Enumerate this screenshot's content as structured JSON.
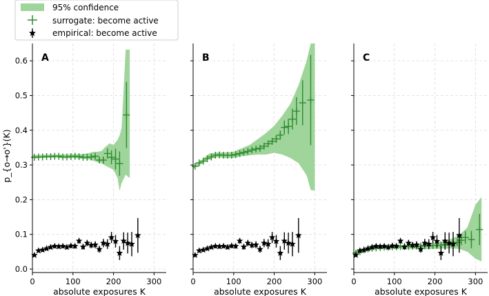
{
  "chart_data": {
    "type": "scatter",
    "shared_ylabel": "p_{o→o'}(K)",
    "shared_xlabel": "absolute exposures K",
    "ylim": [
      -0.01,
      0.65
    ],
    "yticks": [
      0.0,
      0.1,
      0.2,
      0.3,
      0.4,
      0.5,
      0.6
    ],
    "ytick_labels": [
      "0.0",
      "0.1",
      "0.2",
      "0.3",
      "0.4",
      "0.5",
      "0.6"
    ],
    "legend": {
      "placement": "top-left, above panels",
      "entries": [
        {
          "name": "95% confidence",
          "kind": "band",
          "color": "#9fd49a"
        },
        {
          "name": "surrogate: become active",
          "kind": "plus",
          "color": "#2e8b2e"
        },
        {
          "name": "empirical: become active",
          "kind": "star",
          "color": "#000000"
        }
      ]
    },
    "panels": [
      {
        "label": "A",
        "xlabel": "absolute exposures K",
        "xlim": [
          0,
          330
        ],
        "xticks": [
          0,
          100,
          200,
          300
        ],
        "xtick_labels": [
          "0",
          "100",
          "200",
          "300"
        ],
        "confidence_band": {
          "x": [
            0,
            20,
            40,
            60,
            80,
            100,
            120,
            140,
            150,
            160,
            170,
            180,
            190,
            200,
            210,
            215,
            220,
            230,
            240
          ],
          "lower": [
            0.319,
            0.32,
            0.321,
            0.321,
            0.319,
            0.32,
            0.318,
            0.316,
            0.312,
            0.308,
            0.305,
            0.298,
            0.292,
            0.286,
            0.262,
            0.225,
            0.248,
            0.272,
            0.262
          ],
          "upper": [
            0.328,
            0.329,
            0.33,
            0.33,
            0.33,
            0.331,
            0.331,
            0.334,
            0.338,
            0.338,
            0.34,
            0.352,
            0.362,
            0.358,
            0.372,
            0.385,
            0.405,
            0.632,
            0.632
          ]
        },
        "surrogate": {
          "x": [
            5,
            15,
            25,
            35,
            45,
            55,
            65,
            75,
            85,
            95,
            105,
            115,
            125,
            135,
            145,
            155,
            165,
            175,
            185,
            195,
            205,
            215,
            232
          ],
          "y": [
            0.322,
            0.323,
            0.323,
            0.324,
            0.324,
            0.325,
            0.325,
            0.323,
            0.323,
            0.324,
            0.325,
            0.324,
            0.322,
            0.322,
            0.323,
            0.325,
            0.314,
            0.314,
            0.333,
            0.322,
            0.317,
            0.304,
            0.444
          ],
          "err": [
            0.002,
            0.002,
            0.002,
            0.002,
            0.002,
            0.002,
            0.002,
            0.002,
            0.002,
            0.002,
            0.002,
            0.003,
            0.003,
            0.004,
            0.005,
            0.006,
            0.008,
            0.01,
            0.015,
            0.02,
            0.03,
            0.035,
            0.095
          ]
        },
        "empirical": {
          "x": [
            5,
            15,
            25,
            35,
            45,
            55,
            65,
            75,
            85,
            95,
            105,
            115,
            125,
            135,
            145,
            155,
            165,
            175,
            185,
            195,
            205,
            215,
            225,
            235,
            245,
            260
          ],
          "y": [
            0.04,
            0.053,
            0.055,
            0.059,
            0.063,
            0.066,
            0.065,
            0.066,
            0.063,
            0.067,
            0.066,
            0.081,
            0.064,
            0.075,
            0.069,
            0.07,
            0.057,
            0.075,
            0.072,
            0.091,
            0.08,
            0.046,
            0.081,
            0.075,
            0.072,
            0.097
          ],
          "err": [
            0.004,
            0.005,
            0.005,
            0.005,
            0.005,
            0.006,
            0.006,
            0.006,
            0.006,
            0.007,
            0.007,
            0.008,
            0.008,
            0.009,
            0.009,
            0.01,
            0.01,
            0.012,
            0.014,
            0.016,
            0.018,
            0.02,
            0.025,
            0.03,
            0.035,
            0.05
          ]
        }
      },
      {
        "label": "B",
        "xlabel": "absolute exposures K",
        "xlim": [
          0,
          330
        ],
        "xticks": [
          0,
          100,
          200,
          300
        ],
        "xtick_labels": [
          "0",
          "100",
          "200",
          "300"
        ],
        "confidence_band": {
          "x": [
            0,
            20,
            40,
            60,
            80,
            100,
            120,
            140,
            160,
            180,
            200,
            220,
            240,
            260,
            280,
            290,
            300
          ],
          "lower": [
            0.289,
            0.303,
            0.318,
            0.322,
            0.32,
            0.32,
            0.325,
            0.328,
            0.33,
            0.33,
            0.335,
            0.33,
            0.32,
            0.305,
            0.27,
            0.228,
            0.226
          ],
          "upper": [
            0.3,
            0.313,
            0.333,
            0.336,
            0.336,
            0.338,
            0.348,
            0.358,
            0.375,
            0.392,
            0.413,
            0.442,
            0.476,
            0.53,
            0.6,
            0.65,
            0.65
          ]
        },
        "surrogate": {
          "x": [
            5,
            15,
            25,
            35,
            45,
            55,
            65,
            75,
            85,
            95,
            105,
            115,
            125,
            135,
            145,
            155,
            165,
            175,
            185,
            195,
            205,
            215,
            225,
            235,
            245,
            255,
            270,
            290
          ],
          "y": [
            0.296,
            0.306,
            0.311,
            0.318,
            0.323,
            0.328,
            0.329,
            0.328,
            0.328,
            0.328,
            0.33,
            0.333,
            0.336,
            0.339,
            0.343,
            0.346,
            0.348,
            0.354,
            0.361,
            0.368,
            0.375,
            0.386,
            0.408,
            0.411,
            0.432,
            0.455,
            0.479,
            0.487
          ],
          "err": [
            0.003,
            0.003,
            0.003,
            0.003,
            0.003,
            0.003,
            0.003,
            0.003,
            0.003,
            0.003,
            0.003,
            0.004,
            0.004,
            0.005,
            0.005,
            0.006,
            0.006,
            0.007,
            0.008,
            0.009,
            0.011,
            0.013,
            0.02,
            0.022,
            0.03,
            0.04,
            0.065,
            0.13
          ]
        },
        "empirical": {
          "x": [
            5,
            15,
            25,
            35,
            45,
            55,
            65,
            75,
            85,
            95,
            105,
            115,
            125,
            135,
            145,
            155,
            165,
            175,
            185,
            195,
            205,
            215,
            225,
            235,
            245,
            260
          ],
          "y": [
            0.04,
            0.053,
            0.055,
            0.059,
            0.063,
            0.066,
            0.065,
            0.066,
            0.063,
            0.067,
            0.066,
            0.081,
            0.064,
            0.075,
            0.069,
            0.07,
            0.057,
            0.075,
            0.072,
            0.091,
            0.08,
            0.046,
            0.081,
            0.075,
            0.072,
            0.097
          ],
          "err": [
            0.004,
            0.005,
            0.005,
            0.005,
            0.005,
            0.006,
            0.006,
            0.006,
            0.006,
            0.007,
            0.007,
            0.008,
            0.008,
            0.009,
            0.009,
            0.01,
            0.01,
            0.012,
            0.014,
            0.016,
            0.018,
            0.02,
            0.025,
            0.03,
            0.035,
            0.05
          ]
        }
      },
      {
        "label": "C",
        "xlabel": "absolute exposures K",
        "xlim": [
          0,
          330
        ],
        "xticks": [
          0,
          100,
          200,
          300
        ],
        "xtick_labels": [
          "0",
          "100",
          "200",
          "300"
        ],
        "confidence_band": {
          "x": [
            0,
            20,
            40,
            60,
            80,
            100,
            120,
            140,
            160,
            180,
            200,
            220,
            240,
            260,
            280,
            300,
            315
          ],
          "lower": [
            0.038,
            0.048,
            0.053,
            0.057,
            0.058,
            0.059,
            0.059,
            0.058,
            0.058,
            0.057,
            0.058,
            0.059,
            0.059,
            0.058,
            0.05,
            0.03,
            0.022
          ],
          "upper": [
            0.05,
            0.058,
            0.062,
            0.066,
            0.067,
            0.068,
            0.069,
            0.07,
            0.071,
            0.073,
            0.076,
            0.08,
            0.087,
            0.098,
            0.12,
            0.185,
            0.208
          ]
        },
        "surrogate": {
          "x": [
            5,
            15,
            25,
            35,
            45,
            55,
            65,
            75,
            85,
            95,
            105,
            115,
            125,
            135,
            145,
            155,
            165,
            175,
            185,
            195,
            205,
            215,
            225,
            235,
            245,
            255,
            265,
            275,
            290,
            310
          ],
          "y": [
            0.046,
            0.05,
            0.055,
            0.058,
            0.06,
            0.061,
            0.062,
            0.063,
            0.063,
            0.064,
            0.064,
            0.065,
            0.065,
            0.065,
            0.066,
            0.066,
            0.066,
            0.067,
            0.067,
            0.068,
            0.068,
            0.069,
            0.07,
            0.072,
            0.074,
            0.077,
            0.083,
            0.091,
            0.085,
            0.114
          ],
          "err": [
            0.003,
            0.003,
            0.003,
            0.003,
            0.003,
            0.003,
            0.003,
            0.003,
            0.003,
            0.003,
            0.003,
            0.003,
            0.003,
            0.003,
            0.003,
            0.003,
            0.004,
            0.004,
            0.004,
            0.005,
            0.005,
            0.006,
            0.007,
            0.008,
            0.009,
            0.011,
            0.014,
            0.018,
            0.025,
            0.045
          ]
        },
        "empirical": {
          "x": [
            5,
            15,
            25,
            35,
            45,
            55,
            65,
            75,
            85,
            95,
            105,
            115,
            125,
            135,
            145,
            155,
            165,
            175,
            185,
            195,
            205,
            215,
            225,
            235,
            245,
            260
          ],
          "y": [
            0.04,
            0.053,
            0.055,
            0.059,
            0.063,
            0.066,
            0.065,
            0.066,
            0.063,
            0.067,
            0.066,
            0.081,
            0.064,
            0.075,
            0.069,
            0.07,
            0.057,
            0.075,
            0.072,
            0.091,
            0.08,
            0.046,
            0.081,
            0.075,
            0.072,
            0.097
          ],
          "err": [
            0.004,
            0.005,
            0.005,
            0.005,
            0.005,
            0.006,
            0.006,
            0.006,
            0.006,
            0.007,
            0.007,
            0.008,
            0.008,
            0.009,
            0.009,
            0.01,
            0.01,
            0.012,
            0.014,
            0.016,
            0.018,
            0.02,
            0.025,
            0.03,
            0.035,
            0.05
          ]
        }
      }
    ]
  }
}
